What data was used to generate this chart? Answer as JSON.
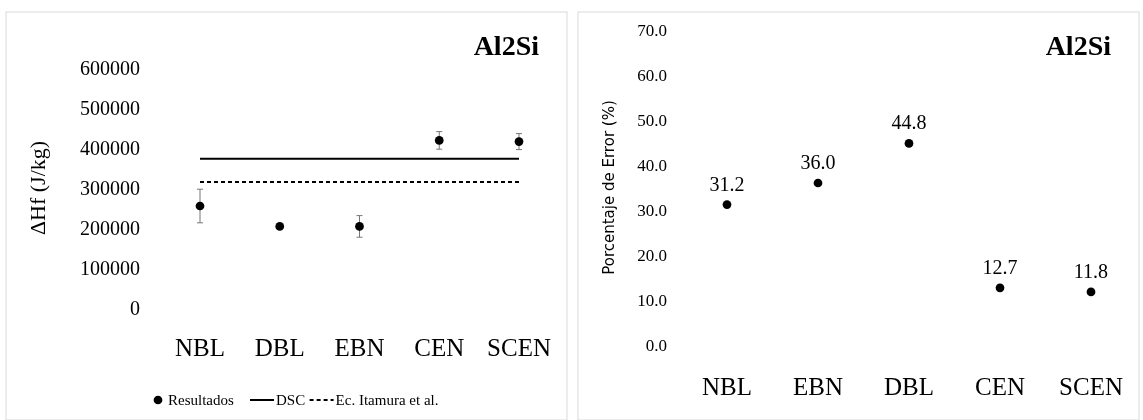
{
  "chart_data": [
    {
      "type": "scatter",
      "title": "Al2Si",
      "ylabel": "ΔHf (J/kg)",
      "categories": [
        "NBL",
        "DBL",
        "EBN",
        "CEN",
        "SCEN"
      ],
      "ylim": [
        0,
        600000
      ],
      "yticks": [
        0,
        100000,
        200000,
        300000,
        400000,
        500000,
        600000
      ],
      "grid": false,
      "legend": "bottom",
      "series": [
        {
          "name": "Resultados",
          "color": "#000000",
          "marker": "circle",
          "values": [
            255000,
            204000,
            204000,
            419000,
            416000
          ],
          "errors": [
            42000,
            null,
            27000,
            22000,
            20000
          ]
        },
        {
          "name": "DSC",
          "type": "line",
          "color": "#000000",
          "marker": "none",
          "line_style": "solid",
          "values": [
            373000,
            373000,
            373000,
            373000,
            373000
          ]
        },
        {
          "name": "Ec. Itamura et al.",
          "type": "line",
          "color": "#000000",
          "marker": "none",
          "line_style": "dashed",
          "values": [
            315000,
            315000,
            315000,
            315000,
            315000
          ]
        }
      ]
    },
    {
      "type": "scatter",
      "title": "Al2Si",
      "ylabel": "Porcentaje de Error (%)",
      "categories": [
        "NBL",
        "EBN",
        "DBL",
        "CEN",
        "SCEN"
      ],
      "ylim": [
        0,
        70
      ],
      "yticks": [
        {
          "value": 0,
          "label": "0.0"
        },
        {
          "value": 10,
          "label": "10.0"
        },
        {
          "value": 20,
          "label": "20.0"
        },
        {
          "value": 30,
          "label": "30.0"
        },
        {
          "value": 40,
          "label": "40.0"
        },
        {
          "value": 50,
          "label": "50.0"
        },
        {
          "value": 60,
          "label": "60.0"
        },
        {
          "value": 70,
          "label": "70.0"
        }
      ],
      "grid": false,
      "legend": false,
      "marker": "circle",
      "series": [
        {
          "color": "#000000",
          "values": [
            31.2,
            36.0,
            44.8,
            12.7,
            11.8
          ],
          "value_labels": [
            "31.2",
            "36.0",
            "44.8",
            "12.7",
            "11.8"
          ]
        }
      ]
    }
  ]
}
